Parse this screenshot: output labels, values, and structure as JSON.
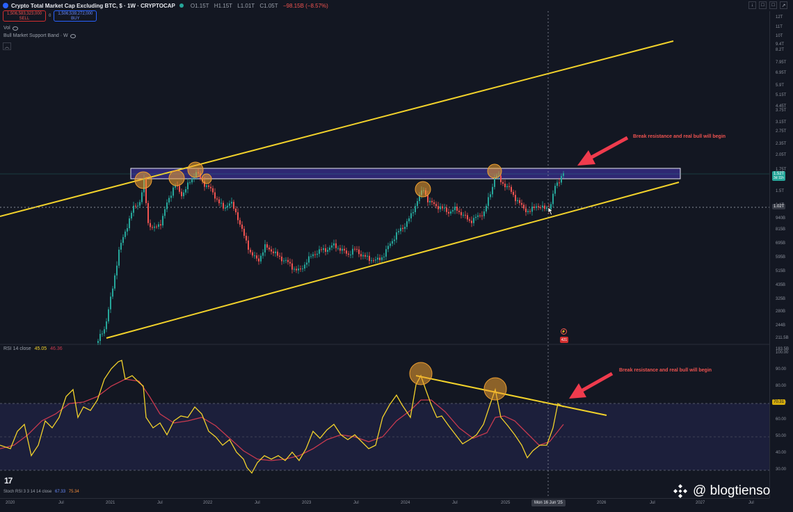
{
  "header": {
    "title": "Crypto Total Market Cap Excluding BTC, $ · 1W · CRYPTOCAP",
    "ohlc": [
      "O1.15T",
      "H1.15T",
      "L1.01T",
      "C1.05T",
      "−98.15B (−8.57%)"
    ],
    "sell_price": "1,506,583,323,000",
    "sell_label": "SELL",
    "buy_price": "1,506,539,272,000",
    "buy_label": "BUY",
    "spread": "0",
    "vol_label": "Vol",
    "indicator_label": "Bull Market Support Band · W",
    "collapse_icon": "chevron-up-icon",
    "window_buttons": [
      "↓",
      "□",
      "□",
      "↗"
    ]
  },
  "price_axis": {
    "ticks": [
      "12T",
      "11T",
      "10T",
      "9.4T",
      "8.2T",
      "7.95T",
      "6.95T",
      "5.9T",
      "5.15T",
      "4.45T",
      "3.75T",
      "3.15T",
      "2.75T",
      "2.35T",
      "2.05T",
      "1.75T",
      "1.5T",
      "1.1T",
      "940B",
      "815B",
      "695B",
      "595B",
      "515B",
      "435B",
      "325B",
      "280B",
      "244B",
      "211.5B",
      "183.5B"
    ],
    "current_price": "1.52T",
    "current_sub": "3d 11h",
    "hline_price": "1.02T"
  },
  "rsi": {
    "label": "RSI 14 close",
    "value1": "45.05",
    "value2": "46.36",
    "ticks": [
      "100.00",
      "90.00",
      "80.00",
      "70.00",
      "60.00",
      "50.00",
      "40.00",
      "30.00"
    ],
    "current_value": "70.31"
  },
  "stoch": {
    "label": "Stoch RSI 3 3 14 14 close",
    "value1": "67.33",
    "value2": "75.34"
  },
  "time_axis": {
    "ticks": [
      "2020",
      "Jul",
      "2021",
      "Jul",
      "2022",
      "Jul",
      "2023",
      "Jul",
      "2024",
      "Jul",
      "2025",
      "2026",
      "Jul",
      "2027",
      "Jul"
    ],
    "cursor_date": "Mon 16 Jun '25"
  },
  "annotations": {
    "price_note": "Break resistance and real bull will begin",
    "rsi_note": "Break resistance and real bull will begin"
  },
  "watermark": "@ blogtienso",
  "tv_logo": "17",
  "event_badge": "421",
  "colors": {
    "background": "#131722",
    "up_candle": "#26a69a",
    "down_candle": "#ef5350",
    "trendline": "#f2d22b",
    "resistance_zone": "#3a2f8f",
    "rsi_line": "#f2d22b",
    "rsi_ma": "#c93a4f",
    "annotation_arrow": "#ef3b4d",
    "highlight_circle": "#f0a030"
  }
}
